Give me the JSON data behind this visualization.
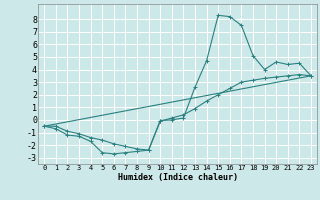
{
  "xlabel": "Humidex (Indice chaleur)",
  "bg_color": "#cde8e8",
  "grid_color": "#ffffff",
  "line_color": "#2a8080",
  "xlim": [
    -0.5,
    23.5
  ],
  "ylim": [
    -3.5,
    9.2
  ],
  "xticks": [
    0,
    1,
    2,
    3,
    4,
    5,
    6,
    7,
    8,
    9,
    10,
    11,
    12,
    13,
    14,
    15,
    16,
    17,
    18,
    19,
    20,
    21,
    22,
    23
  ],
  "yticks": [
    -3,
    -2,
    -1,
    0,
    1,
    2,
    3,
    4,
    5,
    6,
    7,
    8
  ],
  "series1_x": [
    0,
    1,
    2,
    3,
    4,
    5,
    6,
    7,
    8,
    9,
    10,
    11,
    12,
    13,
    14,
    15,
    16,
    17,
    18,
    19,
    20,
    21,
    22,
    23
  ],
  "series1_y": [
    -0.5,
    -0.7,
    -1.2,
    -1.3,
    -1.7,
    -2.6,
    -2.7,
    -2.6,
    -2.5,
    -2.4,
    -0.05,
    0.0,
    0.15,
    2.6,
    4.7,
    8.3,
    8.2,
    7.5,
    5.1,
    4.0,
    4.6,
    4.4,
    4.5,
    3.5
  ],
  "series2_x": [
    0,
    1,
    2,
    3,
    4,
    5,
    6,
    7,
    8,
    9,
    10,
    11,
    12,
    13,
    14,
    15,
    16,
    17,
    18,
    19,
    20,
    21,
    22,
    23
  ],
  "series2_y": [
    -0.5,
    -0.5,
    -0.9,
    -1.1,
    -1.4,
    -1.6,
    -1.9,
    -2.1,
    -2.3,
    -2.4,
    -0.1,
    0.15,
    0.4,
    0.9,
    1.5,
    2.0,
    2.5,
    3.0,
    3.15,
    3.3,
    3.4,
    3.5,
    3.6,
    3.5
  ],
  "series3_x": [
    0,
    23
  ],
  "series3_y": [
    -0.5,
    3.5
  ]
}
